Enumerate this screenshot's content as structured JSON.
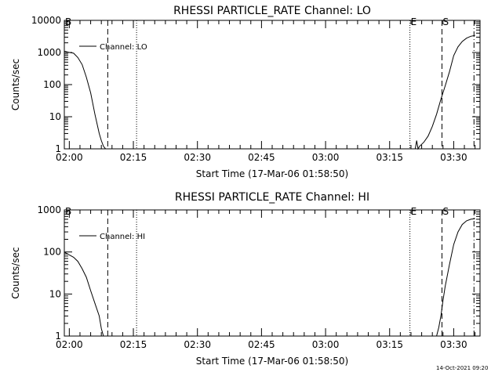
{
  "chart_data": [
    {
      "type": "line",
      "title": "RHESSI PARTICLE_RATE Channel: LO",
      "xlabel": "Start Time (17-Mar-06 01:58:50)",
      "ylabel": "Counts/sec",
      "yscale": "log",
      "ylim": [
        1,
        10000
      ],
      "xlim": [
        "01:58:50",
        "03:36:10"
      ],
      "grid": false,
      "legend": "top-left",
      "x_ticks": [
        "02:00",
        "02:15",
        "02:30",
        "02:45",
        "03:00",
        "03:15",
        "03:30"
      ],
      "y_ticks": [
        "1",
        "10",
        "100",
        "1000",
        "10000"
      ],
      "series": [
        {
          "name": "Channel: LO",
          "x": [
            "01:58:50",
            "02:00:00",
            "02:01:00",
            "02:02:00",
            "02:03:00",
            "02:04:00",
            "02:05:00",
            "02:06:00",
            "02:07:00",
            "02:07:30",
            "02:08:00",
            "02:08:30",
            "02:09:00",
            "03:21:00",
            "03:21:20",
            "03:21:40",
            "03:22:00",
            "03:23:00",
            "03:24:00",
            "03:25:00",
            "03:26:00",
            "03:27:00",
            "03:28:00",
            "03:29:00",
            "03:30:00",
            "03:31:00",
            "03:32:00",
            "03:33:00",
            "03:34:00",
            "03:35:00"
          ],
          "values": [
            1100,
            1000,
            950,
            700,
            420,
            170,
            55,
            12,
            3,
            1.8,
            1.2,
            1,
            1,
            1,
            1.8,
            1,
            1.2,
            1.6,
            2.5,
            5,
            12,
            35,
            90,
            250,
            800,
            1500,
            2200,
            2800,
            3200,
            3400
          ]
        }
      ],
      "markers": [
        {
          "label": "B",
          "x": "01:58:50",
          "style": "dash-dot"
        },
        {
          "label": "",
          "x": "02:09:00",
          "style": "dashed"
        },
        {
          "label": "",
          "x": "02:15:45",
          "style": "dotted"
        },
        {
          "label": "E",
          "x": "03:19:45",
          "style": "dotted"
        },
        {
          "label": "S",
          "x": "03:27:15",
          "style": "dashed"
        },
        {
          "label": "",
          "x": "03:34:45",
          "style": "dash-dot"
        }
      ]
    },
    {
      "type": "line",
      "title": "RHESSI PARTICLE_RATE Channel: HI",
      "xlabel": "Start Time (17-Mar-06 01:58:50)",
      "ylabel": "Counts/sec",
      "yscale": "log",
      "ylim": [
        1,
        1000
      ],
      "xlim": [
        "01:58:50",
        "03:36:10"
      ],
      "grid": false,
      "legend": "top-left",
      "x_ticks": [
        "02:00",
        "02:15",
        "02:30",
        "02:45",
        "03:00",
        "03:15",
        "03:30"
      ],
      "y_ticks": [
        "1",
        "10",
        "100",
        "1000"
      ],
      "series": [
        {
          "name": "Channel: HI",
          "x": [
            "01:58:50",
            "02:00:00",
            "02:01:00",
            "02:02:00",
            "02:03:00",
            "02:04:00",
            "02:05:00",
            "02:06:00",
            "02:07:00",
            "02:07:30",
            "02:08:00",
            "03:26:00",
            "03:26:30",
            "03:27:00",
            "03:27:30",
            "03:28:00",
            "03:29:00",
            "03:30:00",
            "03:31:00",
            "03:32:00",
            "03:33:00",
            "03:34:00",
            "03:35:00"
          ],
          "values": [
            100,
            85,
            75,
            60,
            40,
            25,
            12,
            6,
            3,
            1.5,
            1,
            1,
            1.6,
            3,
            7,
            15,
            50,
            150,
            300,
            450,
            550,
            600,
            620
          ]
        }
      ],
      "markers": [
        {
          "label": "B",
          "x": "01:58:50",
          "style": "dash-dot"
        },
        {
          "label": "",
          "x": "02:09:00",
          "style": "dashed"
        },
        {
          "label": "",
          "x": "02:15:45",
          "style": "dotted"
        },
        {
          "label": "E",
          "x": "03:19:45",
          "style": "dotted"
        },
        {
          "label": "S",
          "x": "03:27:15",
          "style": "dashed"
        },
        {
          "label": "",
          "x": "03:34:45",
          "style": "dash-dot"
        }
      ]
    }
  ],
  "footer": {
    "timestamp": "14-Oct-2021 09:20"
  }
}
